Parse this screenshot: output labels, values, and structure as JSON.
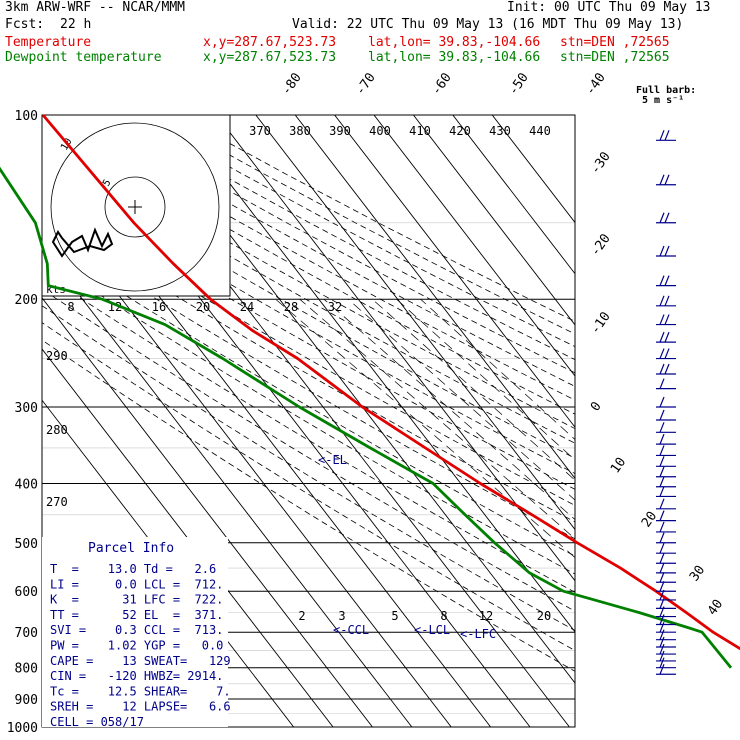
{
  "header": {
    "model": "3km ARW-WRF -- NCAR/MMM",
    "init": "Init: 00 UTC Thu 09 May 13",
    "fcst_label": "Fcst:",
    "fcst_hours": "22 h",
    "valid": "Valid: 22 UTC Thu 09 May 13 (16 MDT Thu 09 May 13)",
    "temp_label": "Temperature",
    "dew_label": "Dewpoint temperature",
    "xy": "x,y=287.67,523.73",
    "latlon": "lat,lon= 39.83,-104.66",
    "stn": "stn=DEN ,72565"
  },
  "colors": {
    "temperature": "#e00000",
    "dewpoint": "#008000",
    "barb": "#00008b",
    "isotherm": "#000000"
  },
  "barb_key": {
    "line1": "Full barb:",
    "line2": "5 m s⁻¹"
  },
  "parcel_info": {
    "title": "Parcel Info",
    "rows": [
      "T  =    13.0 Td =   2.6",
      "LI =     0.0 LCL =  712.",
      "K  =      31 LFC =  722.",
      "TT =      52 EL  =  371.",
      "SVI =    0.3 CCL =  713.",
      "PW =    1.02 YGP =   0.0",
      "CAPE =    13 SWEAT=   129",
      "CIN =   -120 HWBZ= 2914.",
      "Tc =    12.5 SHEAR=    7.",
      "SREH =    12 LAPSE=   6.6",
      "CELL = 058/17"
    ]
  },
  "hodograph": {
    "kts_label": "kts",
    "ring_labels": [
      "5",
      "10"
    ]
  },
  "chart_data": {
    "type": "line",
    "pressure_levels": [
      100,
      200,
      300,
      400,
      500,
      600,
      700,
      800,
      900,
      1000
    ],
    "isotherm_labels": [
      "-80",
      "-70",
      "-60",
      "-50",
      "-40",
      "-30",
      "-20",
      "-10",
      "0",
      "10",
      "20",
      "30",
      "40"
    ],
    "theta_labels": [
      "370",
      "380",
      "390",
      "400",
      "410",
      "420",
      "430",
      "440"
    ],
    "mixing_ratio_labels": [
      "2",
      "3",
      "5",
      "8",
      "12",
      "20"
    ],
    "upper_scale_labels": [
      "8",
      "12",
      "16",
      "20",
      "24",
      "28",
      "32"
    ],
    "left_labels": [
      "290",
      "280",
      "270"
    ],
    "annotations": [
      "EL",
      "CCL",
      "LCL",
      "LFC"
    ],
    "series": [
      {
        "name": "Temperature",
        "points": [
          [
            100,
            -64
          ],
          [
            150,
            -62
          ],
          [
            175,
            -60
          ],
          [
            200,
            -57.5
          ],
          [
            225,
            -53
          ],
          [
            250,
            -47
          ],
          [
            300,
            -40
          ],
          [
            350,
            -32
          ],
          [
            400,
            -25
          ],
          [
            450,
            -18
          ],
          [
            500,
            -12
          ],
          [
            550,
            -6
          ],
          [
            600,
            -1.5
          ],
          [
            650,
            2
          ],
          [
            700,
            5
          ],
          [
            750,
            9
          ],
          [
            800,
            11
          ],
          [
            840,
            13
          ]
        ]
      },
      {
        "name": "Dewpoint temperature",
        "points": [
          [
            100,
            -84
          ],
          [
            150,
            -87
          ],
          [
            175,
            -92
          ],
          [
            190,
            -96
          ],
          [
            200,
            -85
          ],
          [
            220,
            -74
          ],
          [
            250,
            -66
          ],
          [
            300,
            -56
          ],
          [
            350,
            -46
          ],
          [
            400,
            -37
          ],
          [
            450,
            -35
          ],
          [
            500,
            -33
          ],
          [
            560,
            -30
          ],
          [
            600,
            -25
          ],
          [
            650,
            -10
          ],
          [
            690,
            0
          ],
          [
            700,
            2.2
          ],
          [
            750,
            2.4
          ],
          [
            800,
            2.6
          ]
        ]
      }
    ],
    "wind_levels_hpa": [
      110,
      130,
      150,
      170,
      190,
      205,
      220,
      235,
      250,
      265,
      280,
      300,
      315,
      330,
      345,
      360,
      375,
      390,
      405,
      420,
      440,
      460,
      480,
      500,
      520,
      540,
      560,
      580,
      600,
      620,
      640,
      660,
      680,
      700,
      720,
      740,
      760,
      780,
      800,
      820
    ],
    "xlabel": "",
    "ylabel": ""
  }
}
